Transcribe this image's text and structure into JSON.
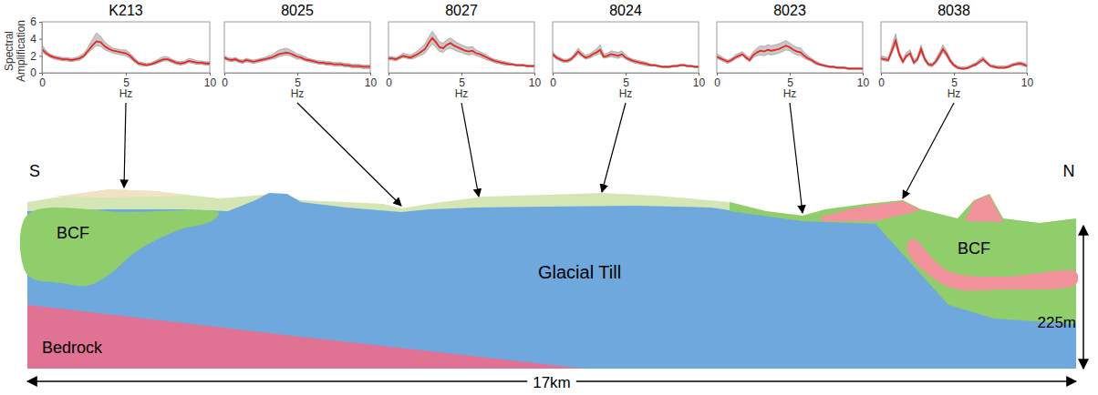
{
  "chart_data": [
    {
      "type": "line",
      "title": "K213",
      "xlabel": "Hz",
      "ylabel": "Spectral Amplification",
      "x": [
        0,
        0.25,
        0.5,
        0.75,
        1,
        1.25,
        1.5,
        1.75,
        2,
        2.25,
        2.5,
        2.75,
        3,
        3.25,
        3.5,
        3.75,
        4,
        4.25,
        4.5,
        4.75,
        5,
        5.25,
        5.5,
        5.75,
        6,
        6.25,
        6.5,
        6.75,
        7,
        7.25,
        7.5,
        7.75,
        8,
        8.25,
        8.5,
        8.75,
        9,
        9.25,
        9.5,
        9.75,
        10
      ],
      "series": [
        {
          "color": "#e8251e",
          "values": [
            2.8,
            2.3,
            2.0,
            1.8,
            1.7,
            1.6,
            1.6,
            1.5,
            1.6,
            1.7,
            2.0,
            2.6,
            3.2,
            3.7,
            3.6,
            3.1,
            2.8,
            2.6,
            2.5,
            2.4,
            2.3,
            2.0,
            1.5,
            1.1,
            1.0,
            0.9,
            1.0,
            1.2,
            1.4,
            1.6,
            1.6,
            1.4,
            1.2,
            1.1,
            1.2,
            1.4,
            1.3,
            1.2,
            1.2,
            1.1,
            1.1
          ],
          "lower": [
            2.5,
            2.1,
            1.8,
            1.6,
            1.5,
            1.4,
            1.4,
            1.3,
            1.4,
            1.5,
            1.8,
            2.3,
            2.8,
            3.2,
            3.1,
            2.7,
            2.5,
            2.3,
            2.2,
            2.1,
            2.0,
            1.7,
            1.3,
            0.9,
            0.8,
            0.8,
            0.9,
            1.0,
            1.2,
            1.4,
            1.4,
            1.2,
            1.0,
            0.9,
            1.0,
            1.2,
            1.1,
            1.0,
            1.0,
            0.9,
            0.9
          ],
          "upper": [
            3.3,
            2.6,
            2.2,
            2.0,
            1.9,
            1.8,
            1.8,
            1.7,
            1.8,
            2.0,
            2.3,
            3.0,
            3.9,
            4.7,
            4.3,
            3.6,
            3.2,
            2.9,
            2.8,
            2.7,
            2.7,
            2.3,
            1.8,
            1.3,
            1.2,
            1.1,
            1.2,
            1.4,
            1.7,
            1.9,
            1.9,
            1.6,
            1.4,
            1.3,
            1.4,
            1.7,
            1.6,
            1.4,
            1.4,
            1.3,
            1.3
          ]
        }
      ],
      "xlim": [
        0,
        10
      ],
      "xticks": [
        0,
        5,
        10
      ],
      "ylim": [
        0,
        6
      ],
      "yticks": [
        0,
        2,
        4,
        6
      ]
    },
    {
      "type": "line",
      "title": "8025",
      "xlabel": "Hz",
      "x": [
        0,
        0.25,
        0.5,
        0.75,
        1,
        1.25,
        1.5,
        1.75,
        2,
        2.25,
        2.5,
        2.75,
        3,
        3.25,
        3.5,
        3.75,
        4,
        4.25,
        4.5,
        4.75,
        5,
        5.25,
        5.5,
        5.75,
        6,
        6.25,
        6.5,
        6.75,
        7,
        7.25,
        7.5,
        7.75,
        8,
        8.25,
        8.5,
        8.75,
        9,
        9.25,
        9.5,
        9.75,
        10
      ],
      "series": [
        {
          "color": "#e8251e",
          "values": [
            1.8,
            1.6,
            1.5,
            1.6,
            1.4,
            1.3,
            1.5,
            1.4,
            1.3,
            1.4,
            1.5,
            1.6,
            1.7,
            1.8,
            2.0,
            2.2,
            2.3,
            2.4,
            2.3,
            2.1,
            1.9,
            1.8,
            1.6,
            1.5,
            1.4,
            1.3,
            1.2,
            1.2,
            1.1,
            1.1,
            1.0,
            1.0,
            1.0,
            0.9,
            0.9,
            0.8,
            0.8,
            0.8,
            0.7,
            0.7,
            0.7
          ],
          "lower": [
            1.6,
            1.4,
            1.3,
            1.4,
            1.2,
            1.1,
            1.3,
            1.2,
            1.1,
            1.2,
            1.3,
            1.4,
            1.5,
            1.6,
            1.7,
            1.9,
            2.0,
            2.1,
            2.0,
            1.8,
            1.6,
            1.6,
            1.4,
            1.3,
            1.2,
            1.1,
            1.0,
            1.0,
            0.9,
            0.9,
            0.8,
            0.8,
            0.8,
            0.7,
            0.7,
            0.6,
            0.6,
            0.6,
            0.5,
            0.5,
            0.5
          ],
          "upper": [
            2.0,
            1.8,
            1.7,
            1.8,
            1.6,
            1.5,
            1.7,
            1.6,
            1.5,
            1.6,
            1.7,
            1.8,
            2.0,
            2.1,
            2.4,
            2.7,
            2.8,
            2.9,
            2.7,
            2.5,
            2.2,
            2.1,
            1.9,
            1.7,
            1.6,
            1.5,
            1.4,
            1.4,
            1.3,
            1.3,
            1.2,
            1.2,
            1.2,
            1.1,
            1.1,
            1.0,
            1.0,
            1.0,
            0.9,
            0.9,
            0.9
          ]
        }
      ],
      "xlim": [
        0,
        10
      ],
      "xticks": [
        0,
        5,
        10
      ],
      "ylim": [
        0,
        6
      ],
      "tick_labels": "x"
    },
    {
      "type": "line",
      "title": "8027",
      "xlabel": "Hz",
      "x": [
        0,
        0.25,
        0.5,
        0.75,
        1,
        1.25,
        1.5,
        1.75,
        2,
        2.25,
        2.5,
        2.75,
        3,
        3.25,
        3.5,
        3.75,
        4,
        4.25,
        4.5,
        4.75,
        5,
        5.25,
        5.5,
        5.75,
        6,
        6.25,
        6.5,
        6.75,
        7,
        7.25,
        7.5,
        7.75,
        8,
        8.25,
        8.5,
        8.75,
        9,
        9.25,
        9.5,
        9.75,
        10
      ],
      "series": [
        {
          "color": "#e8251e",
          "values": [
            1.7,
            1.7,
            1.6,
            1.8,
            2.0,
            1.9,
            1.8,
            2.0,
            2.2,
            2.5,
            2.8,
            3.5,
            4.1,
            3.6,
            3.0,
            2.9,
            3.3,
            3.5,
            3.2,
            3.0,
            2.8,
            2.6,
            2.5,
            2.6,
            2.3,
            2.2,
            2.0,
            1.8,
            1.6,
            1.4,
            1.3,
            1.2,
            1.1,
            1.0,
            1.0,
            0.9,
            0.9,
            0.9,
            0.8,
            0.8,
            0.8
          ],
          "lower": [
            1.5,
            1.5,
            1.4,
            1.6,
            1.8,
            1.7,
            1.6,
            1.7,
            1.9,
            2.1,
            2.3,
            2.9,
            3.4,
            3.0,
            2.5,
            2.4,
            2.8,
            2.9,
            2.7,
            2.5,
            2.4,
            2.2,
            2.1,
            2.2,
            2.0,
            1.9,
            1.7,
            1.5,
            1.4,
            1.2,
            1.1,
            1.0,
            0.9,
            0.9,
            0.9,
            0.8,
            0.8,
            0.8,
            0.7,
            0.7,
            0.7
          ],
          "upper": [
            1.9,
            1.9,
            1.8,
            2.0,
            2.3,
            2.2,
            2.1,
            2.3,
            2.6,
            3.0,
            3.4,
            4.2,
            4.9,
            4.3,
            3.6,
            3.5,
            3.9,
            4.1,
            3.8,
            3.5,
            3.3,
            3.1,
            3.0,
            3.1,
            2.7,
            2.5,
            2.3,
            2.1,
            1.8,
            1.6,
            1.5,
            1.4,
            1.3,
            1.2,
            1.1,
            1.0,
            1.0,
            1.0,
            0.9,
            0.9,
            0.9
          ]
        }
      ],
      "xlim": [
        0,
        10
      ],
      "xticks": [
        0,
        5,
        10
      ],
      "ylim": [
        0,
        6
      ],
      "tick_labels": "x"
    },
    {
      "type": "line",
      "title": "8024",
      "xlabel": "Hz",
      "x": [
        0,
        0.25,
        0.5,
        0.75,
        1,
        1.25,
        1.5,
        1.75,
        2,
        2.25,
        2.5,
        2.75,
        3,
        3.25,
        3.5,
        3.75,
        4,
        4.25,
        4.5,
        4.75,
        5,
        5.25,
        5.5,
        5.75,
        6,
        6.25,
        6.5,
        6.75,
        7,
        7.25,
        7.5,
        7.75,
        8,
        8.25,
        8.5,
        8.75,
        9,
        9.25,
        9.5,
        9.75,
        10
      ],
      "series": [
        {
          "color": "#e8251e",
          "values": [
            2.2,
            1.8,
            1.6,
            1.4,
            1.4,
            1.6,
            2.0,
            2.5,
            2.1,
            1.8,
            1.9,
            2.2,
            2.4,
            2.7,
            1.9,
            2.0,
            2.2,
            2.1,
            2.0,
            2.2,
            1.8,
            1.6,
            1.4,
            1.3,
            1.2,
            1.1,
            1.0,
            0.9,
            0.9,
            0.8,
            0.7,
            0.7,
            0.7,
            0.8,
            0.8,
            0.9,
            0.9,
            0.8,
            0.8,
            0.7,
            0.7
          ],
          "lower": [
            2.0,
            1.6,
            1.4,
            1.2,
            1.2,
            1.4,
            1.8,
            2.2,
            1.9,
            1.6,
            1.7,
            1.9,
            2.1,
            2.3,
            1.7,
            1.8,
            1.9,
            1.8,
            1.7,
            1.9,
            1.6,
            1.4,
            1.2,
            1.1,
            1.0,
            0.9,
            0.8,
            0.8,
            0.8,
            0.7,
            0.6,
            0.6,
            0.6,
            0.7,
            0.7,
            0.8,
            0.8,
            0.7,
            0.7,
            0.6,
            0.6
          ],
          "upper": [
            2.5,
            2.0,
            1.8,
            1.6,
            1.6,
            1.8,
            2.3,
            2.9,
            2.4,
            2.1,
            2.2,
            2.5,
            2.8,
            3.3,
            2.2,
            2.3,
            2.6,
            2.5,
            2.4,
            2.6,
            2.1,
            1.8,
            1.6,
            1.5,
            1.4,
            1.3,
            1.2,
            1.0,
            1.0,
            0.9,
            0.8,
            0.8,
            0.8,
            0.9,
            0.9,
            1.0,
            1.0,
            0.9,
            0.9,
            0.8,
            0.8
          ]
        }
      ],
      "xlim": [
        0,
        10
      ],
      "xticks": [
        0,
        5,
        10
      ],
      "ylim": [
        0,
        6
      ],
      "tick_labels": "x"
    },
    {
      "type": "line",
      "title": "8023",
      "xlabel": "Hz",
      "x": [
        0,
        0.25,
        0.5,
        0.75,
        1,
        1.25,
        1.5,
        1.75,
        2,
        2.25,
        2.5,
        2.75,
        3,
        3.25,
        3.5,
        3.75,
        4,
        4.25,
        4.5,
        4.75,
        5,
        5.25,
        5.5,
        5.75,
        6,
        6.25,
        6.5,
        6.75,
        7,
        7.25,
        7.5,
        7.75,
        8,
        8.25,
        8.5,
        8.75,
        9,
        9.25,
        9.5,
        9.75,
        10
      ],
      "series": [
        {
          "color": "#e8251e",
          "values": [
            1.9,
            1.7,
            1.5,
            1.3,
            1.5,
            1.8,
            2.0,
            2.2,
            1.8,
            1.5,
            2.1,
            2.4,
            2.6,
            2.5,
            2.7,
            2.6,
            2.7,
            2.8,
            3.0,
            3.2,
            3.0,
            2.7,
            2.5,
            2.4,
            2.0,
            1.7,
            1.5,
            1.2,
            1.0,
            0.9,
            0.8,
            0.7,
            0.7,
            0.6,
            0.6,
            0.6,
            0.5,
            0.5,
            0.5,
            0.5,
            0.5
          ],
          "lower": [
            1.7,
            1.5,
            1.3,
            1.1,
            1.3,
            1.6,
            1.8,
            2.0,
            1.6,
            1.3,
            1.8,
            2.0,
            2.1,
            2.0,
            2.2,
            2.1,
            2.2,
            2.3,
            2.5,
            2.7,
            2.6,
            2.3,
            2.1,
            2.0,
            1.7,
            1.5,
            1.3,
            1.0,
            0.9,
            0.8,
            0.7,
            0.6,
            0.6,
            0.5,
            0.5,
            0.5,
            0.4,
            0.4,
            0.4,
            0.4,
            0.4
          ],
          "upper": [
            2.2,
            2.0,
            1.7,
            1.5,
            1.7,
            2.1,
            2.3,
            2.5,
            2.1,
            1.8,
            2.5,
            2.9,
            3.2,
            3.1,
            3.3,
            3.2,
            3.3,
            3.4,
            3.6,
            3.8,
            3.5,
            3.2,
            3.0,
            2.9,
            2.4,
            2.0,
            1.7,
            1.4,
            1.2,
            1.0,
            0.9,
            0.8,
            0.8,
            0.7,
            0.7,
            0.7,
            0.6,
            0.6,
            0.6,
            0.6,
            0.6
          ]
        }
      ],
      "xlim": [
        0,
        10
      ],
      "xticks": [
        0,
        5,
        10
      ],
      "ylim": [
        0,
        6
      ],
      "tick_labels": "x"
    },
    {
      "type": "line",
      "title": "8038",
      "xlabel": "Hz",
      "x": [
        0,
        0.25,
        0.5,
        0.75,
        1,
        1.25,
        1.5,
        1.75,
        2,
        2.25,
        2.5,
        2.75,
        3,
        3.25,
        3.5,
        3.75,
        4,
        4.25,
        4.5,
        4.75,
        5,
        5.25,
        5.5,
        5.75,
        6,
        6.25,
        6.5,
        6.75,
        7,
        7.25,
        7.5,
        7.75,
        8,
        8.25,
        8.5,
        8.75,
        9,
        9.25,
        9.5,
        9.75,
        10
      ],
      "series": [
        {
          "color": "#e8251e",
          "values": [
            1.7,
            1.6,
            1.5,
            2.6,
            3.8,
            2.2,
            1.3,
            2.0,
            2.3,
            1.2,
            1.6,
            2.8,
            1.6,
            1.0,
            0.9,
            1.3,
            2.0,
            2.8,
            2.2,
            1.4,
            0.9,
            0.6,
            0.5,
            0.5,
            0.6,
            0.8,
            1.0,
            1.3,
            1.6,
            1.2,
            0.8,
            0.7,
            0.6,
            0.6,
            0.6,
            0.7,
            0.9,
            1.0,
            1.1,
            1.0,
            0.8
          ],
          "lower": [
            1.5,
            1.4,
            1.3,
            2.3,
            3.3,
            1.9,
            1.1,
            1.8,
            2.0,
            1.0,
            1.4,
            2.4,
            1.4,
            0.8,
            0.7,
            1.1,
            1.7,
            2.4,
            1.9,
            1.2,
            0.7,
            0.5,
            0.4,
            0.4,
            0.5,
            0.7,
            0.8,
            1.1,
            1.4,
            1.0,
            0.7,
            0.6,
            0.5,
            0.5,
            0.5,
            0.6,
            0.8,
            0.9,
            0.9,
            0.8,
            0.7
          ],
          "upper": [
            2.0,
            1.9,
            1.8,
            3.2,
            4.6,
            2.6,
            1.6,
            2.4,
            2.7,
            1.5,
            1.9,
            3.3,
            1.9,
            1.2,
            1.1,
            1.6,
            2.4,
            3.3,
            2.6,
            1.7,
            1.1,
            0.8,
            0.7,
            0.7,
            0.8,
            1.0,
            1.2,
            1.6,
            1.9,
            1.4,
            1.0,
            0.9,
            0.8,
            0.8,
            0.8,
            0.9,
            1.1,
            1.2,
            1.3,
            1.2,
            1.0
          ]
        }
      ],
      "xlim": [
        0,
        10
      ],
      "xticks": [
        0,
        5,
        10
      ],
      "ylim": [
        0,
        6
      ],
      "tick_labels": "x"
    }
  ],
  "cross_section": {
    "south": "S",
    "north": "N",
    "unit_labels": [
      "BCF",
      "Glacial Till",
      "Bedrock",
      "BCF"
    ],
    "depth": "225m",
    "length": "17km"
  }
}
